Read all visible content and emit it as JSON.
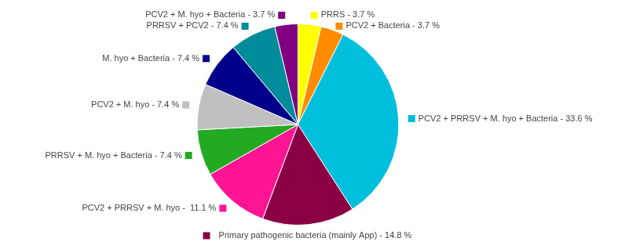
{
  "chart_data": {
    "type": "pie",
    "categories": [
      "PRRS - 3.7 %",
      "PCV2 + Bacteria - 3.7 %",
      "PCV2 + PRRSV + M. hyo + Bacteria - 33.6 %",
      "Primary pathogenic bacteria (mainly App) - 14.8 %",
      "PCV2 + PRRSV + M. hyo -  11.1 %",
      "PRRSV + M. hyo + Bacteria - 7.4 %",
      "PCV2 + M. hyo - 7.4 %",
      "M. hyo + Bacteria - 7.4 %",
      "PRRSV + PCV2 - 7.4 %",
      "PCV2 + M. hyo + Bacteria - 3.7 %"
    ],
    "values": [
      3.7,
      3.7,
      33.6,
      14.8,
      11.1,
      7.4,
      7.4,
      7.4,
      7.4,
      3.7
    ],
    "colors": [
      "#FFFF00",
      "#FF8C00",
      "#00BFDD",
      "#8B0045",
      "#FF1493",
      "#22AA22",
      "#C0C0C0",
      "#00008B",
      "#008B9B",
      "#800080"
    ]
  }
}
